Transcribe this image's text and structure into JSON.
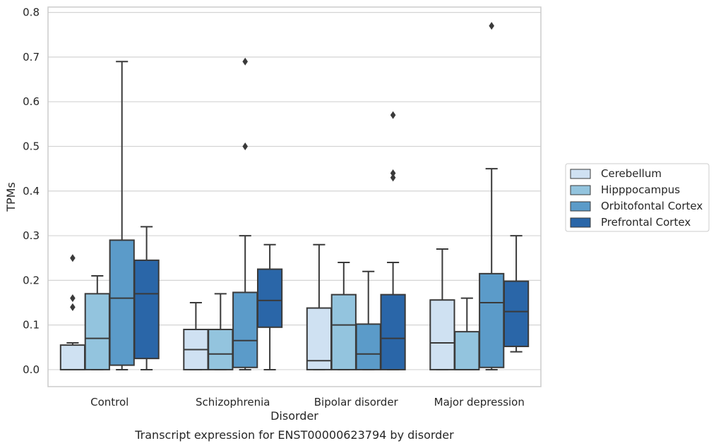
{
  "chart_data": {
    "type": "box",
    "caption": "Transcript expression for ENST00000623794 by disorder",
    "xlabel": "Disorder",
    "ylabel": "TPMs",
    "ylim": [
      -0.038,
      0.812
    ],
    "yticks": [
      "0.0",
      "0.1",
      "0.2",
      "0.3",
      "0.4",
      "0.5",
      "0.6",
      "0.7",
      "0.8"
    ],
    "grid": "horizontal",
    "legend_position": "right",
    "categories": [
      "Control",
      "Schizophrenia",
      "Bipolar disorder",
      "Major depression"
    ],
    "series": [
      {
        "name": "Cerebellum",
        "color": "#cfe1f2",
        "boxes": [
          {
            "whisker_low": 0.0,
            "q1": 0.0,
            "median": 0.0,
            "q3": 0.055,
            "whisker_high": 0.06,
            "outliers": [
              0.14,
              0.16,
              0.25
            ]
          },
          {
            "whisker_low": 0.0,
            "q1": 0.0,
            "median": 0.045,
            "q3": 0.09,
            "whisker_high": 0.15,
            "outliers": []
          },
          {
            "whisker_low": 0.0,
            "q1": 0.0,
            "median": 0.02,
            "q3": 0.138,
            "whisker_high": 0.28,
            "outliers": []
          },
          {
            "whisker_low": 0.0,
            "q1": 0.0,
            "median": 0.06,
            "q3": 0.156,
            "whisker_high": 0.27,
            "outliers": []
          }
        ]
      },
      {
        "name": "Hipppocampus",
        "color": "#93c4de",
        "boxes": [
          {
            "whisker_low": 0.0,
            "q1": 0.0,
            "median": 0.07,
            "q3": 0.17,
            "whisker_high": 0.21,
            "outliers": []
          },
          {
            "whisker_low": 0.0,
            "q1": 0.0,
            "median": 0.035,
            "q3": 0.09,
            "whisker_high": 0.17,
            "outliers": []
          },
          {
            "whisker_low": 0.0,
            "q1": 0.0,
            "median": 0.1,
            "q3": 0.168,
            "whisker_high": 0.24,
            "outliers": []
          },
          {
            "whisker_low": 0.0,
            "q1": 0.0,
            "median": 0.0,
            "q3": 0.085,
            "whisker_high": 0.16,
            "outliers": []
          }
        ]
      },
      {
        "name": "Orbitofontal Cortex",
        "color": "#5b9bc9",
        "boxes": [
          {
            "whisker_low": 0.0,
            "q1": 0.01,
            "median": 0.16,
            "q3": 0.29,
            "whisker_high": 0.69,
            "outliers": []
          },
          {
            "whisker_low": 0.0,
            "q1": 0.005,
            "median": 0.065,
            "q3": 0.173,
            "whisker_high": 0.3,
            "outliers": [
              0.5,
              0.69
            ]
          },
          {
            "whisker_low": 0.0,
            "q1": 0.0,
            "median": 0.035,
            "q3": 0.102,
            "whisker_high": 0.22,
            "outliers": []
          },
          {
            "whisker_low": 0.0,
            "q1": 0.005,
            "median": 0.15,
            "q3": 0.215,
            "whisker_high": 0.45,
            "outliers": [
              0.77
            ]
          }
        ]
      },
      {
        "name": "Prefrontal Cortex",
        "color": "#2a66a8",
        "boxes": [
          {
            "whisker_low": 0.0,
            "q1": 0.025,
            "median": 0.17,
            "q3": 0.245,
            "whisker_high": 0.32,
            "outliers": []
          },
          {
            "whisker_low": 0.0,
            "q1": 0.095,
            "median": 0.155,
            "q3": 0.225,
            "whisker_high": 0.28,
            "outliers": []
          },
          {
            "whisker_low": 0.0,
            "q1": 0.0,
            "median": 0.07,
            "q3": 0.168,
            "whisker_high": 0.24,
            "outliers": [
              0.43,
              0.44,
              0.57
            ]
          },
          {
            "whisker_low": 0.04,
            "q1": 0.052,
            "median": 0.13,
            "q3": 0.198,
            "whisker_high": 0.3,
            "outliers": []
          }
        ]
      }
    ]
  }
}
